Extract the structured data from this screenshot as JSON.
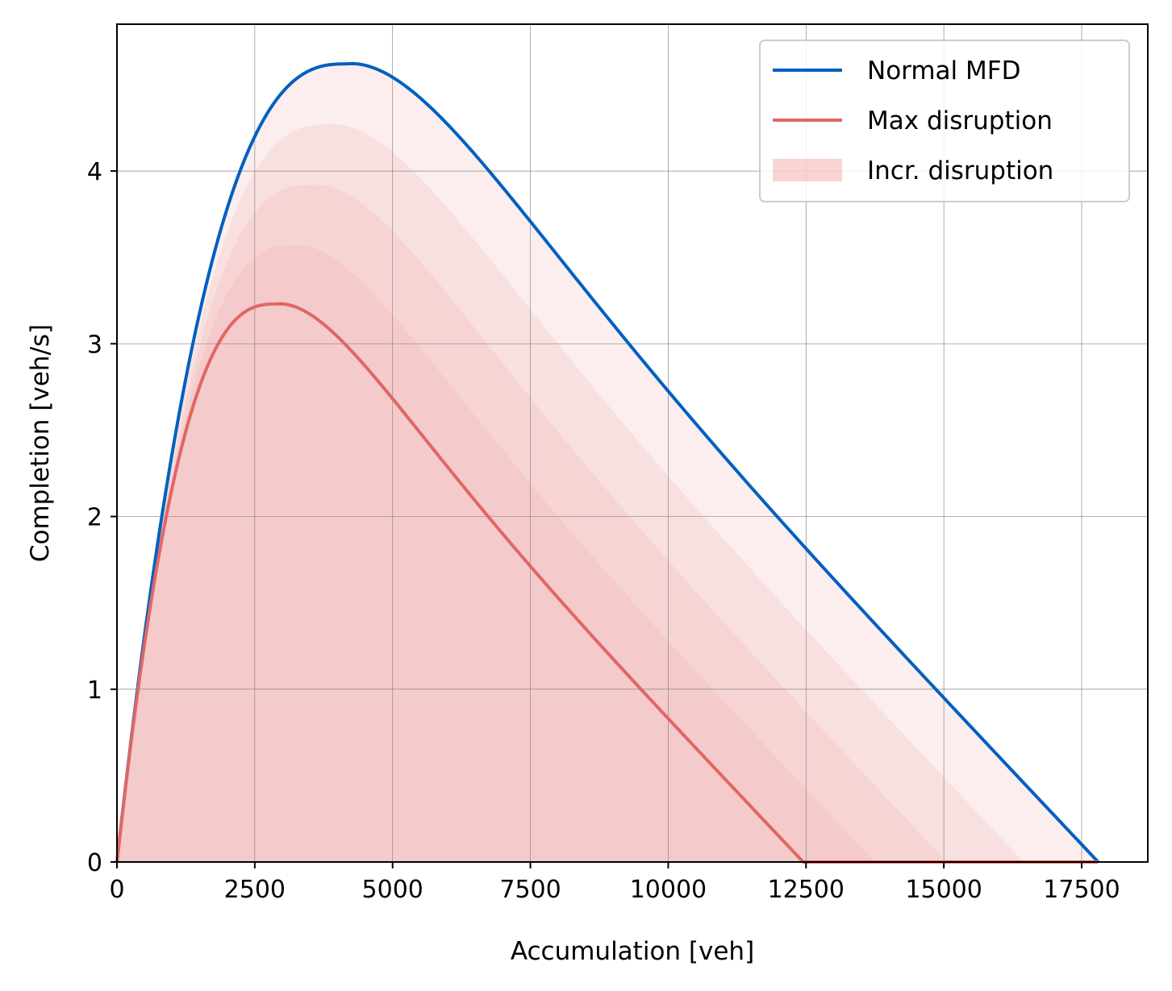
{
  "chart_data": {
    "type": "line",
    "title": "",
    "xlabel": "Accumulation [veh]",
    "ylabel": "Completion [veh/s]",
    "xlim": [
      0,
      18700
    ],
    "ylim": [
      0,
      4.85
    ],
    "xticks": [
      0,
      2500,
      5000,
      7500,
      10000,
      12500,
      15000,
      17500
    ],
    "xtick_labels": [
      "0",
      "2500",
      "5000",
      "7500",
      "10000",
      "12500",
      "15000",
      "17500"
    ],
    "yticks": [
      0,
      1,
      2,
      3,
      4
    ],
    "ytick_labels": [
      "0",
      "1",
      "2",
      "3",
      "4"
    ],
    "grid": true,
    "legend_position": "top-right",
    "series": [
      {
        "name": "Normal MFD",
        "color": "#0060c0",
        "peak_x": 4150,
        "peak_y": 4.62,
        "jam_x": 17800,
        "x": [
          0,
          500,
          1000,
          1500,
          2000,
          2500,
          3000,
          3500,
          4150,
          5000,
          6000,
          7500,
          10000,
          12500,
          15000,
          17800
        ],
        "values": [
          0,
          1.25,
          2.25,
          3.05,
          3.65,
          4.08,
          4.38,
          4.56,
          4.62,
          4.51,
          4.14,
          3.66,
          2.77,
          1.89,
          1.0,
          0
        ]
      },
      {
        "name": "Max disruption",
        "color": "#e06666",
        "peak_x": 2880,
        "peak_y": 3.23,
        "jam_x": 12450,
        "x": [
          0,
          500,
          1000,
          1500,
          2000,
          2500,
          2880,
          3500,
          4000,
          5000,
          7500,
          10000,
          12450
        ],
        "values": [
          0,
          1.18,
          2.05,
          2.65,
          3.02,
          3.2,
          3.23,
          3.15,
          2.98,
          2.66,
          1.77,
          0.88,
          0
        ]
      }
    ],
    "bands": {
      "name": "Incr. disruption",
      "color": "#f0a0a0",
      "levels": [
        {
          "peak_x": 2880,
          "peak_y": 3.23,
          "jam_x": 12450
        },
        {
          "peak_x": 3200,
          "peak_y": 3.57,
          "jam_x": 13750
        },
        {
          "peak_x": 3530,
          "peak_y": 3.92,
          "jam_x": 15050
        },
        {
          "peak_x": 3830,
          "peak_y": 4.27,
          "jam_x": 16450
        },
        {
          "peak_x": 4150,
          "peak_y": 4.62,
          "jam_x": 17800
        }
      ]
    },
    "legend": [
      "Normal MFD",
      "Max disruption",
      "Incr. disruption"
    ]
  }
}
